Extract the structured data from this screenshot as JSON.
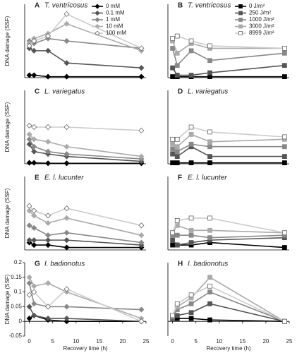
{
  "chart_data": [
    {
      "type": "line",
      "panel": "A",
      "title": "T. ventricosus",
      "ylabel": "DNA damage (SSF)",
      "marker": "diamond",
      "legend": "top-right",
      "x": [
        0,
        1,
        4,
        8,
        24
      ],
      "xlim": [
        -1,
        25
      ],
      "ylim": [
        0,
        1.5
      ],
      "series": [
        {
          "name": "0 mM",
          "color": "#000000",
          "values": [
            0.05,
            0.05,
            0.02,
            0.02,
            0.02
          ]
        },
        {
          "name": "0.1 mM",
          "color": "#555555",
          "values": [
            0.6,
            0.55,
            0.55,
            0.3,
            0.2
          ]
        },
        {
          "name": "1 mM",
          "color": "#888888",
          "values": [
            0.75,
            0.7,
            0.8,
            0.75,
            0.6
          ]
        },
        {
          "name": "10 mM",
          "color": "#aaaaaa",
          "values": [
            0.7,
            0.8,
            0.9,
            1.1,
            0.55
          ]
        },
        {
          "name": "100 mM",
          "color": "#cccccc",
          "open": true,
          "values": [
            0.65,
            0.75,
            0.85,
            1.3,
            0.6
          ]
        }
      ]
    },
    {
      "type": "line",
      "panel": "B",
      "title": "T. ventricosus",
      "marker": "square",
      "legend": "top-right",
      "x": [
        0,
        1,
        4,
        8,
        24
      ],
      "xlim": [
        -1,
        25
      ],
      "ylim": [
        0,
        1.5
      ],
      "series": [
        {
          "name": "0 J/m²",
          "color": "#000000",
          "values": [
            0.02,
            0.02,
            0.02,
            0.02,
            0.02
          ]
        },
        {
          "name": "250 J/m²",
          "color": "#555555",
          "values": [
            0.2,
            0.05,
            0.05,
            0.1,
            0.25
          ]
        },
        {
          "name": "1000 J/m²",
          "color": "#888888",
          "values": [
            0.6,
            0.25,
            0.55,
            0.35,
            0.5
          ]
        },
        {
          "name": "3000 J/m²",
          "color": "#aaaaaa",
          "values": [
            0.75,
            0.5,
            0.7,
            0.6,
            0.6
          ]
        },
        {
          "name": "8999 J/m²",
          "color": "#cccccc",
          "open": true,
          "values": [
            0.8,
            0.85,
            0.75,
            0.65,
            0.6
          ]
        }
      ]
    },
    {
      "type": "line",
      "panel": "C",
      "title": "L. variegatus",
      "ylabel": "DNA damage (SSF)",
      "marker": "diamond",
      "x": [
        0,
        1,
        4,
        8,
        24
      ],
      "xlim": [
        -1,
        25
      ],
      "ylim": [
        0,
        1.5
      ],
      "series": [
        {
          "color": "#000000",
          "values": [
            0.02,
            0.02,
            0.01,
            0.01,
            0.01
          ]
        },
        {
          "color": "#555555",
          "values": [
            0.4,
            0.25,
            0.2,
            0.15,
            0.05
          ]
        },
        {
          "color": "#888888",
          "values": [
            0.5,
            0.35,
            0.25,
            0.2,
            0.1
          ]
        },
        {
          "color": "#aaaaaa",
          "values": [
            0.6,
            0.5,
            0.45,
            0.35,
            0.15
          ]
        },
        {
          "color": "#cccccc",
          "open": true,
          "values": [
            0.78,
            0.75,
            0.75,
            0.75,
            0.68
          ]
        }
      ]
    },
    {
      "type": "line",
      "panel": "D",
      "title": "L. variegatus",
      "marker": "square",
      "x": [
        0,
        1,
        4,
        8,
        24
      ],
      "xlim": [
        -1,
        25
      ],
      "ylim": [
        0,
        1.5
      ],
      "series": [
        {
          "color": "#000000",
          "values": [
            0.02,
            0.02,
            0.02,
            0.02,
            0.02
          ]
        },
        {
          "color": "#555555",
          "values": [
            0.2,
            0.15,
            0.35,
            0.15,
            0.15
          ]
        },
        {
          "color": "#888888",
          "values": [
            0.3,
            0.25,
            0.4,
            0.35,
            0.35
          ]
        },
        {
          "color": "#aaaaaa",
          "values": [
            0.4,
            0.35,
            0.6,
            0.45,
            0.5
          ]
        },
        {
          "color": "#cccccc",
          "open": true,
          "values": [
            0.5,
            0.5,
            0.75,
            0.65,
            0.55
          ]
        }
      ]
    },
    {
      "type": "line",
      "panel": "E",
      "title": "E. l. lucunter",
      "ylabel": "DNA damage (SSF)",
      "marker": "diamond",
      "x": [
        0,
        1,
        4,
        8,
        24
      ],
      "xlim": [
        -1,
        25
      ],
      "ylim": [
        0,
        1.5
      ],
      "series": [
        {
          "color": "#000000",
          "values": [
            0.15,
            0.1,
            0.1,
            0.05,
            0.05
          ]
        },
        {
          "color": "#555555",
          "values": [
            0.2,
            0.2,
            0.2,
            0.2,
            0.1
          ]
        },
        {
          "color": "#888888",
          "values": [
            0.5,
            0.45,
            0.3,
            0.35,
            0.15
          ]
        },
        {
          "color": "#aaaaaa",
          "values": [
            0.8,
            0.7,
            0.55,
            0.65,
            0.3
          ]
        },
        {
          "color": "#cccccc",
          "open": true,
          "values": [
            0.9,
            0.8,
            0.7,
            0.85,
            0.5
          ]
        }
      ]
    },
    {
      "type": "line",
      "panel": "F",
      "title": "E. l. lucunter",
      "marker": "square",
      "x": [
        0,
        1,
        4,
        8,
        24
      ],
      "xlim": [
        -1,
        25
      ],
      "ylim": [
        0,
        1.5
      ],
      "series": [
        {
          "color": "#000000",
          "values": [
            0.1,
            0.1,
            0.1,
            0.15,
            0.05
          ]
        },
        {
          "color": "#555555",
          "values": [
            0.2,
            0.1,
            0.15,
            0.2,
            0.25
          ]
        },
        {
          "color": "#888888",
          "values": [
            0.3,
            0.3,
            0.3,
            0.25,
            0.3
          ]
        },
        {
          "color": "#aaaaaa",
          "values": [
            0.35,
            0.5,
            0.4,
            0.4,
            0.35
          ]
        },
        {
          "color": "#cccccc",
          "open": true,
          "values": [
            0.35,
            0.6,
            0.65,
            0.65,
            0.35
          ]
        }
      ]
    },
    {
      "type": "line",
      "panel": "G",
      "title": "I. badionotus",
      "ylabel": "DNA damage (SSF)",
      "xlabel": "Recovery time (h)",
      "marker": "diamond",
      "x": [
        0,
        1,
        4,
        8,
        24
      ],
      "xlim": [
        -1,
        25
      ],
      "xticks": [
        0,
        5,
        10,
        15,
        20,
        25
      ],
      "ylim": [
        -0.05,
        0.2
      ],
      "yticks": [
        -0.05,
        0,
        0.05,
        0.1,
        0.15,
        0.2
      ],
      "series": [
        {
          "color": "#000000",
          "values": [
            0.01,
            0.02,
            0.005,
            0,
            0
          ]
        },
        {
          "color": "#555555",
          "values": [
            0.05,
            0.02,
            0.01,
            0.01,
            0
          ]
        },
        {
          "color": "#888888",
          "values": [
            0.13,
            0.06,
            0.05,
            0.05,
            0.04
          ]
        },
        {
          "color": "#aaaaaa",
          "values": [
            0.15,
            0.12,
            0.13,
            0.1,
            0.01
          ]
        },
        {
          "color": "#cccccc",
          "open": true,
          "values": [
            0.09,
            0.1,
            0.05,
            0.11,
            0
          ]
        }
      ]
    },
    {
      "type": "line",
      "panel": "H",
      "title": "I. badionotus",
      "xlabel": "Recovery time (h)",
      "marker": "square",
      "x": [
        0,
        1,
        4,
        8,
        24
      ],
      "xlim": [
        -1,
        25
      ],
      "xticks": [
        0,
        5,
        10,
        15,
        20,
        25
      ],
      "ylim": [
        -0.05,
        0.2
      ],
      "series": [
        {
          "color": "#000000",
          "values": [
            0.01,
            0.01,
            0.01,
            0.005,
            0
          ]
        },
        {
          "color": "#555555",
          "values": [
            0.01,
            0.02,
            0.03,
            0.06,
            0
          ]
        },
        {
          "color": "#888888",
          "values": [
            0.015,
            0.04,
            0.06,
            0.1,
            0
          ]
        },
        {
          "color": "#aaaaaa",
          "values": [
            0.02,
            0.05,
            0.08,
            0.15,
            0
          ]
        },
        {
          "color": "#cccccc",
          "open": true,
          "values": [
            0.02,
            0.06,
            0.09,
            0.12,
            0
          ]
        }
      ]
    }
  ]
}
